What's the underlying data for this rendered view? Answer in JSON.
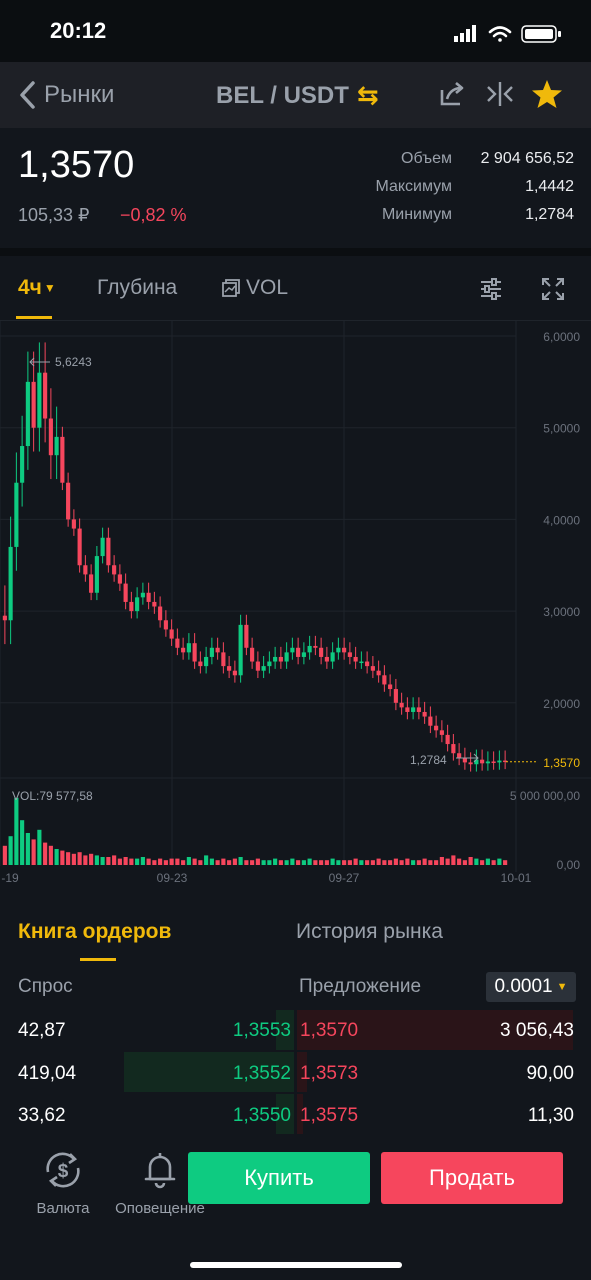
{
  "status": {
    "time": "20:12"
  },
  "nav": {
    "back_label": "Рынки",
    "pair": "BEL / USDT",
    "swap_glyph": "⇆"
  },
  "price": {
    "last": "1,3570",
    "rub": "105,33 ₽",
    "change": "−0,82 %",
    "stats": [
      {
        "label": "Объем",
        "value": "2 904 656,52"
      },
      {
        "label": "Максимум",
        "value": "1,4442"
      },
      {
        "label": "Минимум",
        "value": "1,2784"
      }
    ]
  },
  "chart_tabs": {
    "interval": "4ч",
    "depth": "Глубина",
    "vol": "VOL"
  },
  "chart_data": {
    "type": "candlestick",
    "y_ticks": [
      "6,0000",
      "5,0000",
      "4,0000",
      "3,0000",
      "2,0000"
    ],
    "x_ticks": [
      "-19",
      "09-23",
      "09-27",
      "10-01"
    ],
    "ylim": [
      1.0,
      6.0
    ],
    "high_label": "5,6243",
    "low_label": "1,2784",
    "current_label": "1,3570",
    "current_value": 1.357,
    "vol_label": "VOL:79 577,58",
    "vol_ticks": [
      "5 000 000,00",
      "0,00"
    ],
    "closes": [
      2.9,
      3.7,
      4.4,
      4.8,
      5.5,
      5.0,
      5.6,
      5.1,
      4.7,
      4.9,
      4.4,
      4.0,
      3.9,
      3.5,
      3.4,
      3.2,
      3.6,
      3.8,
      3.5,
      3.4,
      3.3,
      3.1,
      3.0,
      3.15,
      3.2,
      3.1,
      3.05,
      2.9,
      2.8,
      2.7,
      2.6,
      2.55,
      2.65,
      2.45,
      2.4,
      2.5,
      2.6,
      2.55,
      2.4,
      2.35,
      2.3,
      2.85,
      2.6,
      2.45,
      2.35,
      2.4,
      2.45,
      2.5,
      2.45,
      2.55,
      2.6,
      2.5,
      2.55,
      2.62,
      2.6,
      2.5,
      2.45,
      2.55,
      2.6,
      2.55,
      2.5,
      2.45,
      2.45,
      2.4,
      2.35,
      2.3,
      2.2,
      2.15,
      2.0,
      1.95,
      1.9,
      1.95,
      1.9,
      1.85,
      1.75,
      1.7,
      1.65,
      1.55,
      1.45,
      1.4,
      1.35,
      1.33,
      1.38,
      1.34,
      1.36,
      1.35,
      1.37,
      1.357
    ],
    "volumes": [
      0.12,
      0.18,
      0.42,
      0.28,
      0.2,
      0.16,
      0.22,
      0.14,
      0.12,
      0.1,
      0.09,
      0.08,
      0.07,
      0.08,
      0.06,
      0.07,
      0.06,
      0.05,
      0.05,
      0.06,
      0.04,
      0.05,
      0.04,
      0.04,
      0.05,
      0.04,
      0.03,
      0.04,
      0.03,
      0.04,
      0.04,
      0.03,
      0.05,
      0.04,
      0.03,
      0.06,
      0.04,
      0.03,
      0.04,
      0.03,
      0.04,
      0.05,
      0.03,
      0.03,
      0.04,
      0.03,
      0.03,
      0.04,
      0.03,
      0.03,
      0.04,
      0.03,
      0.03,
      0.04,
      0.03,
      0.03,
      0.03,
      0.04,
      0.03,
      0.03,
      0.03,
      0.04,
      0.03,
      0.03,
      0.03,
      0.04,
      0.03,
      0.03,
      0.04,
      0.03,
      0.04,
      0.03,
      0.03,
      0.04,
      0.03,
      0.03,
      0.05,
      0.04,
      0.06,
      0.04,
      0.03,
      0.05,
      0.04,
      0.03,
      0.04,
      0.03,
      0.04,
      0.03
    ],
    "colors": {
      "up": "#0ecb81",
      "down": "#f6465d",
      "accent": "#f0b90b"
    }
  },
  "order_tabs": {
    "book": "Книга ордеров",
    "history": "История рынка"
  },
  "book": {
    "bid_header": "Спрос",
    "ask_header": "Предложение",
    "precision": "0.0001",
    "rows": [
      {
        "bid_qty": "42,87",
        "bid_px": "1,3553",
        "ask_px": "1,3570",
        "ask_qty": "3 056,43"
      },
      {
        "bid_qty": "419,04",
        "bid_px": "1,3552",
        "ask_px": "1,3573",
        "ask_qty": "90,00"
      },
      {
        "bid_qty": "33,62",
        "bid_px": "1,3550",
        "ask_px": "1,3575",
        "ask_qty": "11,30"
      }
    ]
  },
  "bottom": {
    "currency_label": "Валюта",
    "alerts_label": "Оповещение",
    "buy": "Купить",
    "sell": "Продать"
  }
}
